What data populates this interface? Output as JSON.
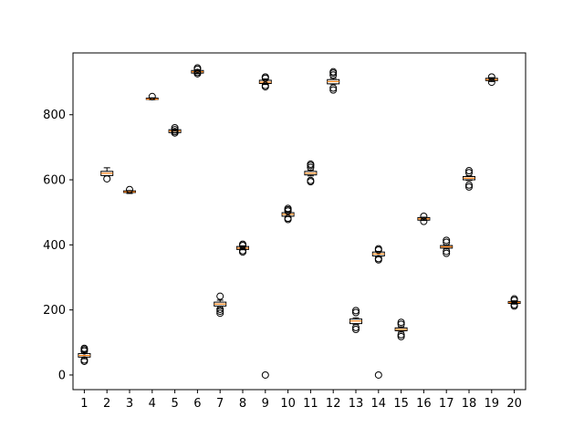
{
  "chart_data": {
    "type": "box",
    "title": "",
    "xlabel": "",
    "ylabel": "",
    "categories": [
      "1",
      "2",
      "3",
      "4",
      "5",
      "6",
      "7",
      "8",
      "9",
      "10",
      "11",
      "12",
      "13",
      "14",
      "15",
      "16",
      "17",
      "18",
      "19",
      "20"
    ],
    "ylim": [
      -45,
      990
    ],
    "yticks": [
      0,
      200,
      400,
      600,
      800
    ],
    "yticklabels": [
      "0",
      "200",
      "400",
      "600",
      "800"
    ],
    "grid": false,
    "colors": {
      "box": "#000000",
      "median": "#ff7f0e",
      "flier": "#000000"
    },
    "boxes": [
      {
        "q1": 55,
        "median": 60,
        "q3": 66,
        "whislo": 50,
        "whishi": 70,
        "fliers": [
          42,
          46,
          74,
          78,
          82
        ]
      },
      {
        "q1": 613,
        "median": 620,
        "q3": 626,
        "whislo": 612,
        "whishi": 637,
        "fliers": [
          603
        ]
      },
      {
        "q1": 561,
        "median": 563,
        "q3": 566,
        "whislo": 558,
        "whishi": 567,
        "fliers": [
          570
        ]
      },
      {
        "q1": 847,
        "median": 848,
        "q3": 851,
        "whislo": 846,
        "whishi": 852,
        "fliers": [
          856
        ]
      },
      {
        "q1": 745,
        "median": 750,
        "q3": 754,
        "whislo": 744,
        "whishi": 756,
        "fliers": [
          744,
          748,
          754,
          760
        ]
      },
      {
        "q1": 928,
        "median": 932,
        "q3": 936,
        "whislo": 926,
        "whishi": 938,
        "fliers": [
          926,
          930,
          940,
          944
        ]
      },
      {
        "q1": 212,
        "median": 218,
        "q3": 224,
        "whislo": 206,
        "whishi": 230,
        "fliers": [
          190,
          196,
          202,
          242
        ]
      },
      {
        "q1": 386,
        "median": 390,
        "q3": 395,
        "whislo": 385,
        "whishi": 397,
        "fliers": [
          378,
          382,
          398,
          402
        ]
      },
      {
        "q1": 896,
        "median": 900,
        "q3": 906,
        "whislo": 893,
        "whishi": 910,
        "fliers": [
          0,
          886,
          890,
          912,
          916
        ]
      },
      {
        "q1": 488,
        "median": 494,
        "q3": 499,
        "whislo": 487,
        "whishi": 501,
        "fliers": [
          478,
          482,
          504,
          508,
          512
        ]
      },
      {
        "q1": 615,
        "median": 620,
        "q3": 626,
        "whislo": 612,
        "whishi": 630,
        "fliers": [
          594,
          598,
          638,
          644,
          648
        ]
      },
      {
        "q1": 895,
        "median": 902,
        "q3": 908,
        "whislo": 894,
        "whishi": 912,
        "fliers": [
          876,
          882,
          922,
          928,
          932
        ]
      },
      {
        "q1": 158,
        "median": 166,
        "q3": 172,
        "whislo": 155,
        "whishi": 176,
        "fliers": [
          140,
          146,
          192,
          198
        ]
      },
      {
        "q1": 366,
        "median": 372,
        "q3": 378,
        "whislo": 364,
        "whishi": 380,
        "fliers": [
          0,
          354,
          358,
          384,
          388
        ]
      },
      {
        "q1": 136,
        "median": 140,
        "q3": 145,
        "whislo": 132,
        "whishi": 148,
        "fliers": [
          118,
          124,
          156,
          162
        ]
      },
      {
        "q1": 476,
        "median": 480,
        "q3": 484,
        "whislo": 475,
        "whishi": 485,
        "fliers": [
          472,
          488
        ]
      },
      {
        "q1": 390,
        "median": 394,
        "q3": 398,
        "whislo": 388,
        "whishi": 400,
        "fliers": [
          374,
          380,
          408,
          414
        ]
      },
      {
        "q1": 600,
        "median": 605,
        "q3": 610,
        "whislo": 598,
        "whishi": 612,
        "fliers": [
          578,
          584,
          622,
          628
        ]
      },
      {
        "q1": 905,
        "median": 908,
        "q3": 912,
        "whislo": 902,
        "whishi": 914,
        "fliers": [
          900,
          916
        ]
      },
      {
        "q1": 220,
        "median": 223,
        "q3": 226,
        "whislo": 218,
        "whishi": 228,
        "fliers": [
          212,
          216,
          230,
          234
        ]
      }
    ]
  }
}
